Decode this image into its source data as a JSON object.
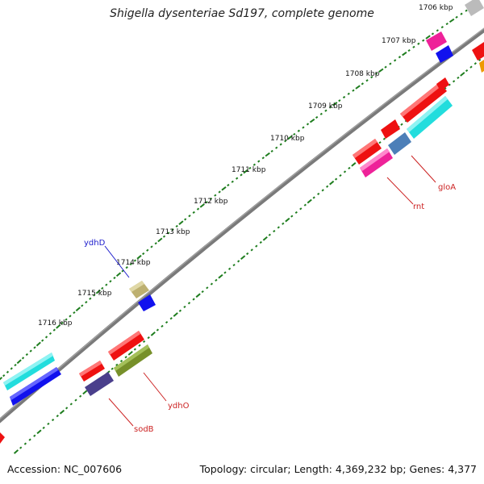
{
  "title": "Shigella dysenteriae Sd197, complete genome",
  "footer": {
    "accession": "Accession: NC_007606",
    "summary": "Topology: circular; Length: 4,369,232 bp; Genes: 4,377"
  },
  "kbp_labels": [
    "1706 kbp",
    "1707 kbp",
    "1708 kbp",
    "1709 kbp",
    "1710 kbp",
    "1711 kbp",
    "1712 kbp",
    "1713 kbp",
    "1714 kbp",
    "1715 kbp",
    "1716 kbp"
  ],
  "gene_labels": {
    "ydhD": "ydhD",
    "rnt": "rnt",
    "gloA": "gloA",
    "ydhO": "ydhO",
    "sodB": "sodB"
  },
  "colors": {
    "backbone": "#7a7a7a",
    "tick": "#1e7d1e",
    "ydhD_label": "#1a1acc",
    "red_label": "#cc2222",
    "red": "#ee1111",
    "blue": "#1111ee",
    "cyan": "#22dddd",
    "magenta": "#ee2299",
    "olive": "#77902a",
    "khaki": "#bdb070",
    "indigo": "#4a3f8c",
    "steelblue": "#4c7fb8",
    "gray": "#bbbbbb",
    "orange": "#ee9900"
  }
}
